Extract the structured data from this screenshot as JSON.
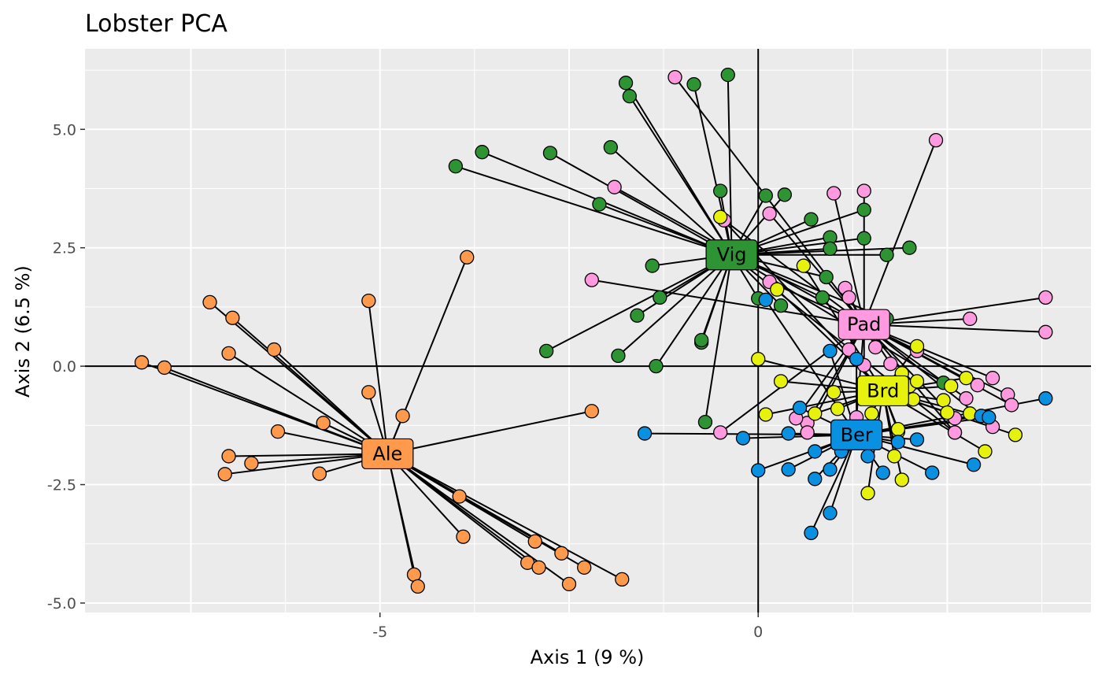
{
  "chart_data": {
    "type": "scatter",
    "title": "Lobster PCA",
    "xlabel": "Axis 1 (9 %)",
    "ylabel": "Axis 2 (6.5 %)",
    "xlim": [
      -8.9,
      4.4
    ],
    "ylim": [
      -5.2,
      6.7
    ],
    "x_ticks": [
      -5,
      0
    ],
    "y_ticks": [
      -5,
      -2.5,
      0,
      2.5,
      5
    ],
    "x_tick_labels": [
      "-5",
      "0"
    ],
    "y_tick_labels": [
      "-5.0",
      "-2.5",
      "0.0",
      "2.5",
      "5.0"
    ],
    "reference_lines": {
      "x": 0,
      "y": 0
    },
    "grid": true,
    "series": [
      {
        "name": "Ale",
        "color": "#FF9A4D",
        "centroid": [
          -4.9,
          -1.85
        ],
        "points": [
          [
            -8.15,
            0.08
          ],
          [
            -7.85,
            -0.03
          ],
          [
            -7.25,
            1.35
          ],
          [
            -6.95,
            1.02
          ],
          [
            -7.0,
            0.27
          ],
          [
            -6.4,
            0.35
          ],
          [
            -6.35,
            -1.38
          ],
          [
            -7.0,
            -1.9
          ],
          [
            -6.7,
            -2.05
          ],
          [
            -7.05,
            -2.28
          ],
          [
            -5.75,
            -1.2
          ],
          [
            -5.8,
            -2.27
          ],
          [
            -5.15,
            1.38
          ],
          [
            -5.15,
            -0.55
          ],
          [
            -3.85,
            2.3
          ],
          [
            -4.7,
            -1.05
          ],
          [
            -2.2,
            -0.95
          ],
          [
            -3.95,
            -2.75
          ],
          [
            -3.9,
            -3.6
          ],
          [
            -2.95,
            -3.7
          ],
          [
            -2.6,
            -3.95
          ],
          [
            -3.05,
            -4.15
          ],
          [
            -2.9,
            -4.25
          ],
          [
            -2.3,
            -4.25
          ],
          [
            -2.5,
            -4.6
          ],
          [
            -1.8,
            -4.5
          ],
          [
            -4.55,
            -4.4
          ],
          [
            -4.5,
            -4.65
          ]
        ]
      },
      {
        "name": "Vig",
        "color": "#2E9433",
        "centroid": [
          -0.35,
          2.35
        ],
        "points": [
          [
            -1.75,
            5.98
          ],
          [
            -1.7,
            5.7
          ],
          [
            -0.85,
            5.95
          ],
          [
            -0.4,
            6.15
          ],
          [
            -4.0,
            4.22
          ],
          [
            -3.65,
            4.52
          ],
          [
            -2.75,
            4.5
          ],
          [
            -1.95,
            4.62
          ],
          [
            -2.1,
            3.42
          ],
          [
            -1.4,
            2.12
          ],
          [
            -1.3,
            1.45
          ],
          [
            -1.6,
            1.07
          ],
          [
            -2.8,
            0.32
          ],
          [
            -1.85,
            0.22
          ],
          [
            -1.35,
            0.0
          ],
          [
            -0.75,
            0.5
          ],
          [
            -0.75,
            0.55
          ],
          [
            -0.7,
            -1.18
          ],
          [
            -0.5,
            3.7
          ],
          [
            0.1,
            3.6
          ],
          [
            0.35,
            3.62
          ],
          [
            0.7,
            3.1
          ],
          [
            0.95,
            2.72
          ],
          [
            0.95,
            2.48
          ],
          [
            1.4,
            3.3
          ],
          [
            1.4,
            2.7
          ],
          [
            1.7,
            2.35
          ],
          [
            2.0,
            2.5
          ],
          [
            0.9,
            1.88
          ],
          [
            0.85,
            1.45
          ],
          [
            0.3,
            1.28
          ],
          [
            0.0,
            1.43
          ],
          [
            1.7,
            1.0
          ],
          [
            2.45,
            -0.35
          ],
          [
            2.6,
            -1.4
          ]
        ]
      },
      {
        "name": "Pad",
        "color": "#FF99E0",
        "centroid": [
          1.4,
          0.88
        ],
        "points": [
          [
            -1.1,
            6.1
          ],
          [
            -1.9,
            3.78
          ],
          [
            -0.45,
            3.08
          ],
          [
            0.15,
            3.22
          ],
          [
            1.0,
            3.65
          ],
          [
            1.4,
            3.7
          ],
          [
            2.35,
            4.77
          ],
          [
            -2.2,
            1.82
          ],
          [
            0.15,
            1.78
          ],
          [
            1.15,
            1.65
          ],
          [
            1.2,
            1.45
          ],
          [
            3.8,
            1.45
          ],
          [
            2.8,
            1.0
          ],
          [
            3.8,
            0.72
          ],
          [
            1.2,
            0.35
          ],
          [
            1.55,
            0.4
          ],
          [
            2.1,
            0.32
          ],
          [
            1.4,
            0.02
          ],
          [
            1.75,
            0.05
          ],
          [
            3.1,
            -0.25
          ],
          [
            2.9,
            -0.4
          ],
          [
            2.75,
            -0.68
          ],
          [
            3.3,
            -0.6
          ],
          [
            3.35,
            -0.82
          ],
          [
            3.1,
            -1.28
          ],
          [
            2.6,
            -1.4
          ],
          [
            2.6,
            -1.1
          ],
          [
            1.3,
            -1.08
          ],
          [
            0.65,
            -1.2
          ],
          [
            0.65,
            -1.4
          ],
          [
            0.5,
            -1.1
          ],
          [
            -0.5,
            -1.4
          ]
        ]
      },
      {
        "name": "Brd",
        "color": "#E6F20D",
        "centroid": [
          1.65,
          -0.52
        ],
        "points": [
          [
            -0.5,
            3.15
          ],
          [
            0.25,
            1.62
          ],
          [
            0.6,
            2.12
          ],
          [
            0.0,
            0.15
          ],
          [
            0.3,
            -0.32
          ],
          [
            0.1,
            -1.02
          ],
          [
            0.75,
            -1.0
          ],
          [
            1.0,
            -0.55
          ],
          [
            1.05,
            -0.9
          ],
          [
            2.1,
            0.42
          ],
          [
            2.0,
            -0.42
          ],
          [
            2.1,
            -0.32
          ],
          [
            2.55,
            -0.42
          ],
          [
            2.75,
            -0.25
          ],
          [
            2.45,
            -0.72
          ],
          [
            2.5,
            -0.98
          ],
          [
            2.8,
            -1.0
          ],
          [
            3.4,
            -1.45
          ],
          [
            3.0,
            -1.8
          ],
          [
            1.85,
            -1.38
          ],
          [
            1.85,
            -1.33
          ],
          [
            1.8,
            -1.9
          ],
          [
            1.9,
            -2.4
          ],
          [
            1.45,
            -2.68
          ],
          [
            1.9,
            -0.15
          ],
          [
            1.5,
            -1.0
          ],
          [
            2.05,
            -0.7
          ]
        ]
      },
      {
        "name": "Ber",
        "color": "#0A90E0",
        "centroid": [
          1.3,
          -1.45
        ],
        "points": [
          [
            -1.5,
            -1.42
          ],
          [
            -0.2,
            -1.52
          ],
          [
            0.1,
            1.4
          ],
          [
            0.55,
            -0.88
          ],
          [
            0.4,
            -1.42
          ],
          [
            0.0,
            -2.2
          ],
          [
            0.4,
            -2.18
          ],
          [
            0.75,
            -1.8
          ],
          [
            0.75,
            -2.38
          ],
          [
            0.95,
            -2.18
          ],
          [
            0.95,
            -3.1
          ],
          [
            0.7,
            -3.52
          ],
          [
            0.95,
            0.32
          ],
          [
            1.1,
            -1.8
          ],
          [
            1.45,
            -1.9
          ],
          [
            1.65,
            -2.25
          ],
          [
            1.85,
            -1.6
          ],
          [
            2.1,
            -1.55
          ],
          [
            1.3,
            0.15
          ],
          [
            2.3,
            -2.25
          ],
          [
            2.85,
            -2.08
          ],
          [
            2.95,
            -1.05
          ],
          [
            3.05,
            -1.08
          ],
          [
            3.8,
            -0.68
          ]
        ]
      }
    ]
  }
}
